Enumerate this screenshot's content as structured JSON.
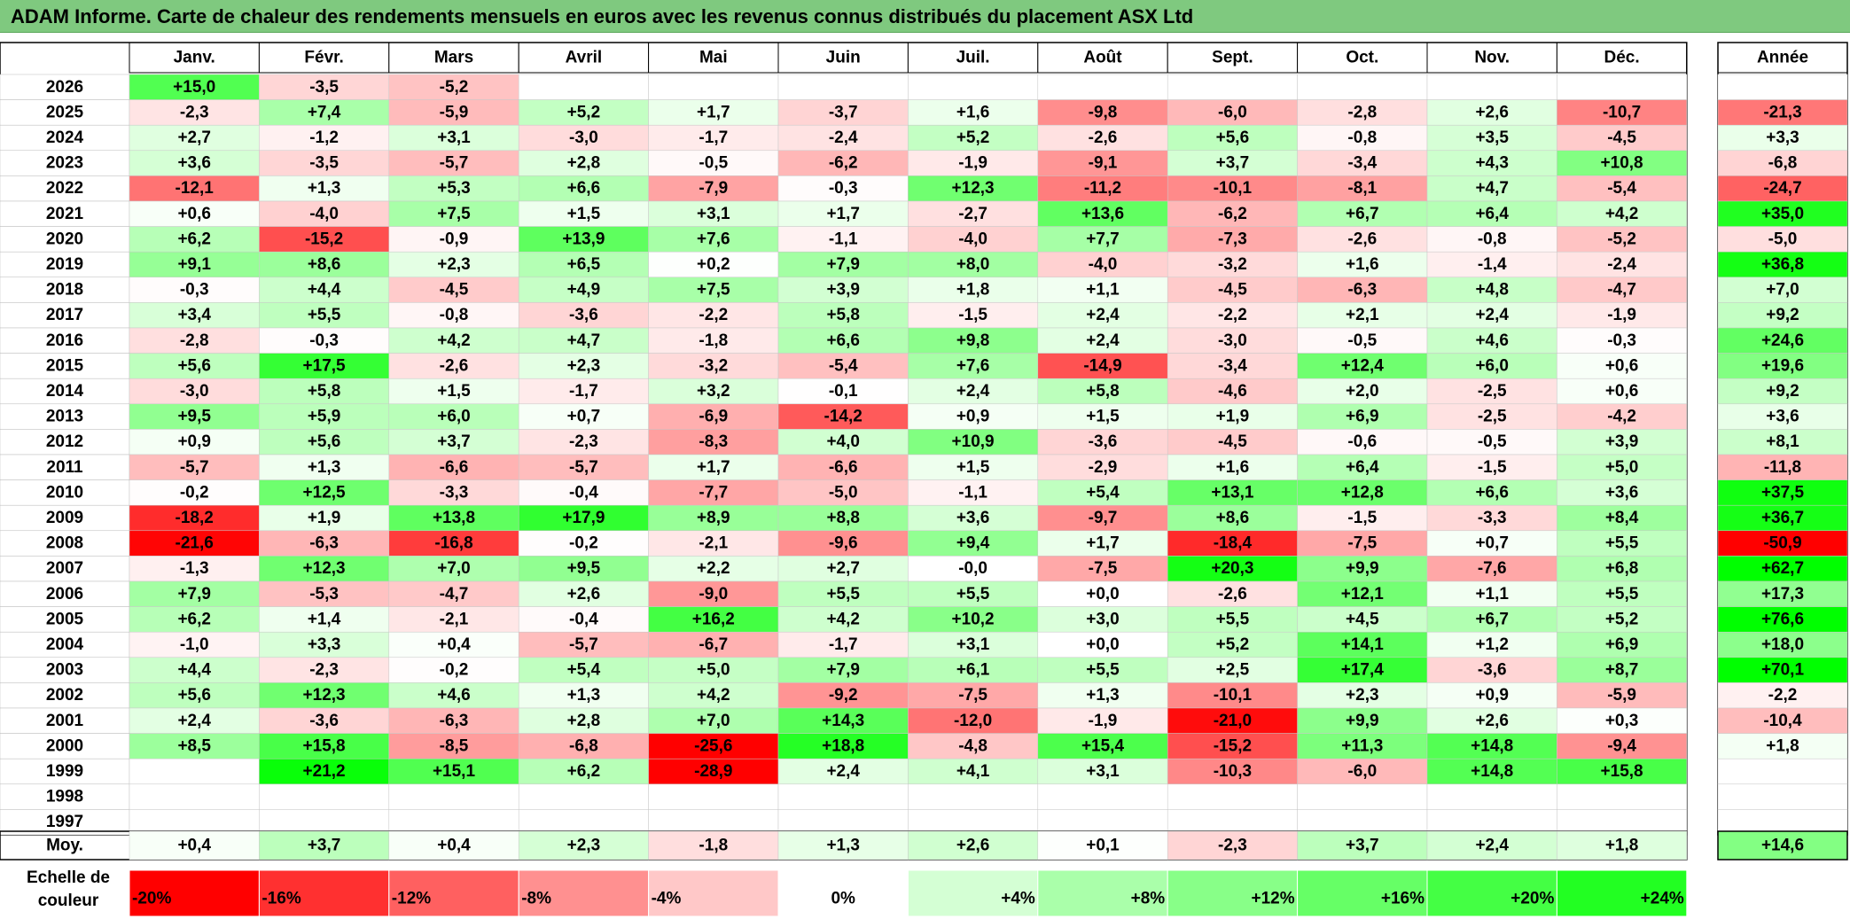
{
  "title": "ADAM Informe. Carte de chaleur des rendements mensuels en euros avec les revenus connus distribués du placement ASX Ltd",
  "chart_data": {
    "type": "heatmap",
    "months": [
      "Janv.",
      "Févr.",
      "Mars",
      "Avril",
      "Mai",
      "Juin",
      "Juil.",
      "Août",
      "Sept.",
      "Oct.",
      "Nov.",
      "Déc."
    ],
    "year_header": "Année",
    "rows": [
      {
        "year": "2026",
        "cells": [
          "+15,0",
          "-3,5",
          "-5,2",
          "",
          "",
          "",
          "",
          "",
          "",
          "",
          "",
          ""
        ],
        "annual": ""
      },
      {
        "year": "2025",
        "cells": [
          "-2,3",
          "+7,4",
          "-5,9",
          "+5,2",
          "+1,7",
          "-3,7",
          "+1,6",
          "-9,8",
          "-6,0",
          "-2,8",
          "+2,6",
          "-10,7"
        ],
        "annual": "-21,3"
      },
      {
        "year": "2024",
        "cells": [
          "+2,7",
          "-1,2",
          "+3,1",
          "-3,0",
          "-1,7",
          "-2,4",
          "+5,2",
          "-2,6",
          "+5,6",
          "-0,8",
          "+3,5",
          "-4,5"
        ],
        "annual": "+3,3"
      },
      {
        "year": "2023",
        "cells": [
          "+3,6",
          "-3,5",
          "-5,7",
          "+2,8",
          "-0,5",
          "-6,2",
          "-1,9",
          "-9,1",
          "+3,7",
          "-3,4",
          "+4,3",
          "+10,8"
        ],
        "annual": "-6,8"
      },
      {
        "year": "2022",
        "cells": [
          "-12,1",
          "+1,3",
          "+5,3",
          "+6,6",
          "-7,9",
          "-0,3",
          "+12,3",
          "-11,2",
          "-10,1",
          "-8,1",
          "+4,7",
          "-5,4"
        ],
        "annual": "-24,7"
      },
      {
        "year": "2021",
        "cells": [
          "+0,6",
          "-4,0",
          "+7,5",
          "+1,5",
          "+3,1",
          "+1,7",
          "-2,7",
          "+13,6",
          "-6,2",
          "+6,7",
          "+6,4",
          "+4,2"
        ],
        "annual": "+35,0"
      },
      {
        "year": "2020",
        "cells": [
          "+6,2",
          "-15,2",
          "-0,9",
          "+13,9",
          "+7,6",
          "-1,1",
          "-4,0",
          "+7,7",
          "-7,3",
          "-2,6",
          "-0,8",
          "-5,2"
        ],
        "annual": "-5,0"
      },
      {
        "year": "2019",
        "cells": [
          "+9,1",
          "+8,6",
          "+2,3",
          "+6,5",
          "+0,2",
          "+7,9",
          "+8,0",
          "-4,0",
          "-3,2",
          "+1,6",
          "-1,4",
          "-2,4"
        ],
        "annual": "+36,8"
      },
      {
        "year": "2018",
        "cells": [
          "-0,3",
          "+4,4",
          "-4,5",
          "+4,9",
          "+7,5",
          "+3,9",
          "+1,8",
          "+1,1",
          "-4,5",
          "-6,3",
          "+4,8",
          "-4,7"
        ],
        "annual": "+7,0"
      },
      {
        "year": "2017",
        "cells": [
          "+3,4",
          "+5,5",
          "-0,8",
          "-3,6",
          "-2,2",
          "+5,8",
          "-1,5",
          "+2,4",
          "-2,2",
          "+2,1",
          "+2,4",
          "-1,9"
        ],
        "annual": "+9,2"
      },
      {
        "year": "2016",
        "cells": [
          "-2,8",
          "-0,3",
          "+4,2",
          "+4,7",
          "-1,8",
          "+6,6",
          "+9,8",
          "+2,4",
          "-3,0",
          "-0,5",
          "+4,6",
          "-0,3"
        ],
        "annual": "+24,6"
      },
      {
        "year": "2015",
        "cells": [
          "+5,6",
          "+17,5",
          "-2,6",
          "+2,3",
          "-3,2",
          "-5,4",
          "+7,6",
          "-14,9",
          "-3,4",
          "+12,4",
          "+6,0",
          "+0,6"
        ],
        "annual": "+19,6"
      },
      {
        "year": "2014",
        "cells": [
          "-3,0",
          "+5,8",
          "+1,5",
          "-1,7",
          "+3,2",
          "-0,1",
          "+2,4",
          "+5,8",
          "-4,6",
          "+2,0",
          "-2,5",
          "+0,6"
        ],
        "annual": "+9,2"
      },
      {
        "year": "2013",
        "cells": [
          "+9,5",
          "+5,9",
          "+6,0",
          "+0,7",
          "-6,9",
          "-14,2",
          "+0,9",
          "+1,5",
          "+1,9",
          "+6,9",
          "-2,5",
          "-4,2"
        ],
        "annual": "+3,6"
      },
      {
        "year": "2012",
        "cells": [
          "+0,9",
          "+5,6",
          "+3,7",
          "-2,3",
          "-8,3",
          "+4,0",
          "+10,9",
          "-3,6",
          "-4,5",
          "-0,6",
          "-0,5",
          "+3,9"
        ],
        "annual": "+8,1"
      },
      {
        "year": "2011",
        "cells": [
          "-5,7",
          "+1,3",
          "-6,6",
          "-5,7",
          "+1,7",
          "-6,6",
          "+1,5",
          "-2,9",
          "+1,6",
          "+6,4",
          "-1,5",
          "+5,0"
        ],
        "annual": "-11,8"
      },
      {
        "year": "2010",
        "cells": [
          "-0,2",
          "+12,5",
          "-3,3",
          "-0,4",
          "-7,7",
          "-5,0",
          "-1,1",
          "+5,4",
          "+13,1",
          "+12,8",
          "+6,6",
          "+3,6"
        ],
        "annual": "+37,5"
      },
      {
        "year": "2009",
        "cells": [
          "-18,2",
          "+1,9",
          "+13,8",
          "+17,9",
          "+8,9",
          "+8,8",
          "+3,6",
          "-9,7",
          "+8,6",
          "-1,5",
          "-3,3",
          "+8,4"
        ],
        "annual": "+36,7"
      },
      {
        "year": "2008",
        "cells": [
          "-21,6",
          "-6,3",
          "-16,8",
          "-0,2",
          "-2,1",
          "-9,6",
          "+9,4",
          "+1,7",
          "-18,4",
          "-7,5",
          "+0,7",
          "+5,5"
        ],
        "annual": "-50,9"
      },
      {
        "year": "2007",
        "cells": [
          "-1,3",
          "+12,3",
          "+7,0",
          "+9,5",
          "+2,2",
          "+2,7",
          "-0,0",
          "-7,5",
          "+20,3",
          "+9,9",
          "-7,6",
          "+6,8"
        ],
        "annual": "+62,7"
      },
      {
        "year": "2006",
        "cells": [
          "+7,9",
          "-5,3",
          "-4,7",
          "+2,6",
          "-9,0",
          "+5,5",
          "+5,5",
          "+0,0",
          "-2,6",
          "+12,1",
          "+1,1",
          "+5,5"
        ],
        "annual": "+17,3"
      },
      {
        "year": "2005",
        "cells": [
          "+6,2",
          "+1,4",
          "-2,1",
          "-0,4",
          "+16,2",
          "+4,2",
          "+10,2",
          "+3,0",
          "+5,5",
          "+4,5",
          "+6,7",
          "+5,2"
        ],
        "annual": "+76,6"
      },
      {
        "year": "2004",
        "cells": [
          "-1,0",
          "+3,3",
          "+0,4",
          "-5,7",
          "-6,7",
          "-1,7",
          "+3,1",
          "+0,0",
          "+5,2",
          "+14,1",
          "+1,2",
          "+6,9"
        ],
        "annual": "+18,0"
      },
      {
        "year": "2003",
        "cells": [
          "+4,4",
          "-2,3",
          "-0,2",
          "+5,4",
          "+5,0",
          "+7,9",
          "+6,1",
          "+5,5",
          "+2,5",
          "+17,4",
          "-3,6",
          "+8,7"
        ],
        "annual": "+70,1"
      },
      {
        "year": "2002",
        "cells": [
          "+5,6",
          "+12,3",
          "+4,6",
          "+1,3",
          "+4,2",
          "-9,2",
          "-7,5",
          "+1,3",
          "-10,1",
          "+2,3",
          "+0,9",
          "-5,9"
        ],
        "annual": "-2,2"
      },
      {
        "year": "2001",
        "cells": [
          "+2,4",
          "-3,6",
          "-6,3",
          "+2,8",
          "+7,0",
          "+14,3",
          "-12,0",
          "-1,9",
          "-21,0",
          "+9,9",
          "+2,6",
          "+0,3"
        ],
        "annual": "-10,4"
      },
      {
        "year": "2000",
        "cells": [
          "+8,5",
          "+15,8",
          "-8,5",
          "-6,8",
          "-25,6",
          "+18,8",
          "-4,8",
          "+15,4",
          "-15,2",
          "+11,3",
          "+14,8",
          "-9,4"
        ],
        "annual": "+1,8"
      },
      {
        "year": "1999",
        "cells": [
          "",
          "+21,2",
          "+15,1",
          "+6,2",
          "-28,9",
          "+2,4",
          "+4,1",
          "+3,1",
          "-10,3",
          "-6,0",
          "+14,8",
          "+15,8"
        ],
        "annual": ""
      },
      {
        "year": "1998",
        "cells": [
          "",
          "",
          "",
          "",
          "",
          "",
          "",
          "",
          "",
          "",
          "",
          ""
        ],
        "annual": ""
      },
      {
        "year": "1997",
        "cells": [
          "",
          "",
          "",
          "",
          "",
          "",
          "",
          "",
          "",
          "",
          "",
          ""
        ],
        "annual": ""
      }
    ],
    "average": {
      "label": "Moy.",
      "cells": [
        "+0,4",
        "+3,7",
        "+0,4",
        "+2,3",
        "-1,8",
        "+1,3",
        "+2,6",
        "+0,1",
        "-2,3",
        "+3,7",
        "+2,4",
        "+1,8"
      ],
      "annual": "+14,6"
    },
    "scale": {
      "label": "Echelle de couleur",
      "stops": [
        {
          "label": "-20%",
          "color": "#ff0000"
        },
        {
          "label": "-16%",
          "color": "#ff3030"
        },
        {
          "label": "-12%",
          "color": "#ff6060"
        },
        {
          "label": "-8%",
          "color": "#ff9090"
        },
        {
          "label": "-4%",
          "color": "#ffc8c8"
        },
        {
          "label": "0%",
          "color": "#ffffff"
        },
        {
          "label": "+4%",
          "color": "#d4ffd4"
        },
        {
          "label": "+8%",
          "color": "#aaffaa"
        },
        {
          "label": "+12%",
          "color": "#88ff88"
        },
        {
          "label": "+16%",
          "color": "#66ff66"
        },
        {
          "label": "+20%",
          "color": "#44ff44"
        },
        {
          "label": "+24%",
          "color": "#22ff22"
        }
      ]
    }
  }
}
